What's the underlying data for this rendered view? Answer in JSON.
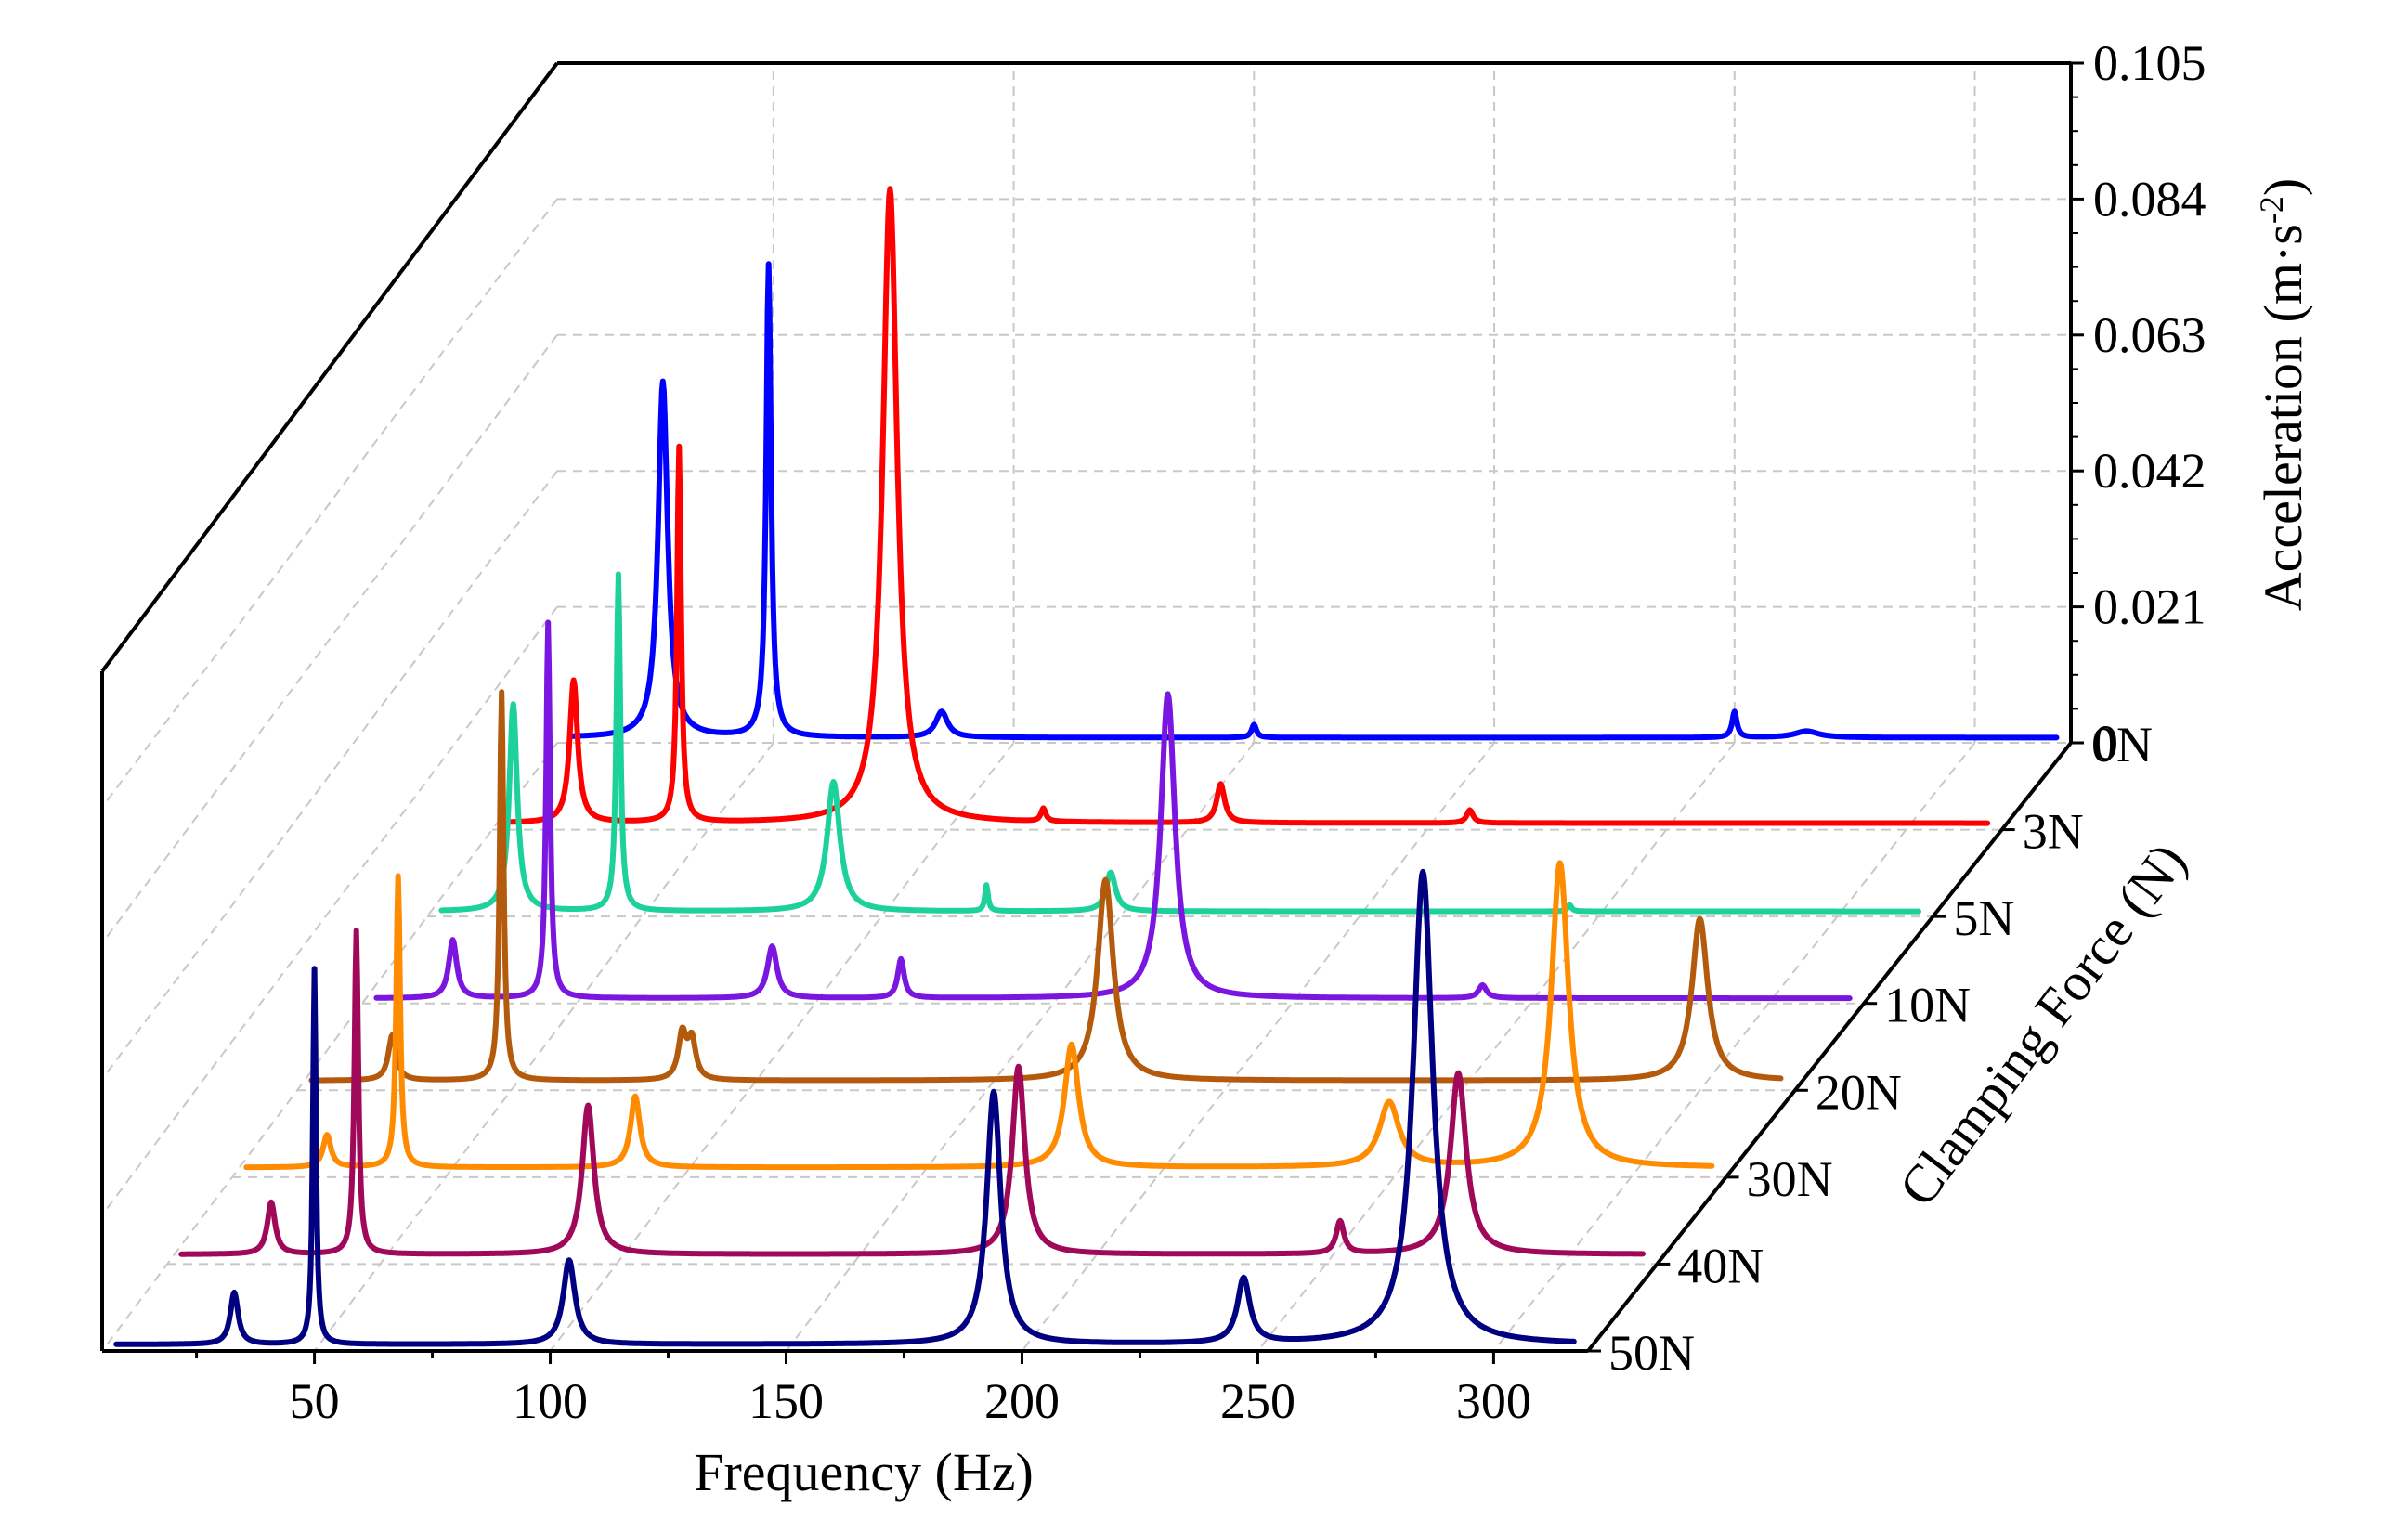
{
  "chart_data": {
    "type": "line",
    "subtype": "3d-waterfall",
    "title": "",
    "xlabel": "Frequency (Hz)",
    "ylabel": "Clamping Force (N)",
    "zlabel": "Acceleration (m·s-2)",
    "zlabel_main": "Acceleration (m·s",
    "zlabel_sup": "-2",
    "zlabel_end": ")",
    "xlim": [
      5,
      320
    ],
    "zlim": [
      0,
      0.105
    ],
    "x_ticks": [
      50,
      100,
      150,
      200,
      250,
      300
    ],
    "x_tick_labels": [
      "50",
      "100",
      "150",
      "200",
      "250",
      "300"
    ],
    "z_ticks": [
      0,
      0.021,
      0.042,
      0.063,
      0.084,
      0.105
    ],
    "z_tick_labels": [
      "0",
      "0.021",
      "0.042",
      "0.063",
      "0.084",
      "0.105"
    ],
    "y_tick_labels": [
      "0N",
      "3N",
      "5N",
      "10N",
      "20N",
      "30N",
      "40N",
      "50N"
    ],
    "grid": true,
    "series": [
      {
        "name": "0N",
        "color": "#0000ff",
        "baseline": 0.0008,
        "peaks": [
          {
            "x": 27,
            "a": 0.055,
            "w": 1.2
          },
          {
            "x": 49,
            "a": 0.073,
            "w": 0.6
          },
          {
            "x": 85,
            "a": 0.004,
            "w": 1.5
          },
          {
            "x": 150,
            "a": 0.002,
            "w": 0.6
          },
          {
            "x": 250,
            "a": 0.004,
            "w": 0.6
          },
          {
            "x": 265,
            "a": 0.001,
            "w": 3
          }
        ]
      },
      {
        "name": "3N",
        "color": "#ff0000",
        "baseline": 0.001,
        "peaks": [
          {
            "x": 22,
            "a": 0.022,
            "w": 1.0
          },
          {
            "x": 44,
            "a": 0.058,
            "w": 0.5
          },
          {
            "x": 88,
            "a": 0.098,
            "w": 1.8
          },
          {
            "x": 120,
            "a": 0.002,
            "w": 0.6
          },
          {
            "x": 157,
            "a": 0.006,
            "w": 1.0
          },
          {
            "x": 209,
            "a": 0.002,
            "w": 0.8
          }
        ]
      },
      {
        "name": "5N",
        "color": "#1dd19a",
        "baseline": 0.0008,
        "peaks": [
          {
            "x": 23,
            "a": 0.032,
            "w": 1.0
          },
          {
            "x": 45,
            "a": 0.052,
            "w": 0.5
          },
          {
            "x": 90,
            "a": 0.02,
            "w": 1.6
          },
          {
            "x": 148,
            "a": 0.006,
            "w": 1.2
          },
          {
            "x": 122,
            "a": 0.004,
            "w": 0.4
          },
          {
            "x": 244,
            "a": 0.001,
            "w": 0.5
          }
        ]
      },
      {
        "name": "10N",
        "color": "#7a16e0",
        "baseline": 0.0008,
        "peaks": [
          {
            "x": 24,
            "a": 0.009,
            "w": 1.0
          },
          {
            "x": 44,
            "a": 0.058,
            "w": 0.5
          },
          {
            "x": 91,
            "a": 0.008,
            "w": 1.2
          },
          {
            "x": 118,
            "a": 0.006,
            "w": 0.8
          },
          {
            "x": 174,
            "a": 0.047,
            "w": 1.8
          },
          {
            "x": 240,
            "a": 0.002,
            "w": 1.0
          }
        ]
      },
      {
        "name": "20N",
        "color": "#b35a0c",
        "baseline": 0.0015,
        "peaks": [
          {
            "x": 25,
            "a": 0.007,
            "w": 1.0
          },
          {
            "x": 48,
            "a": 0.06,
            "w": 0.5
          },
          {
            "x": 86,
            "a": 0.007,
            "w": 1.0
          },
          {
            "x": 88,
            "a": 0.006,
            "w": 1.0
          },
          {
            "x": 175,
            "a": 0.031,
            "w": 2.0
          },
          {
            "x": 300,
            "a": 0.025,
            "w": 2.0
          }
        ]
      },
      {
        "name": "30N",
        "color": "#ff8c00",
        "baseline": 0.0015,
        "peaks": [
          {
            "x": 25,
            "a": 0.005,
            "w": 1.0
          },
          {
            "x": 40,
            "a": 0.045,
            "w": 0.5
          },
          {
            "x": 90,
            "a": 0.011,
            "w": 1.2
          },
          {
            "x": 182,
            "a": 0.019,
            "w": 1.8
          },
          {
            "x": 249,
            "a": 0.01,
            "w": 2.5
          },
          {
            "x": 285,
            "a": 0.047,
            "w": 2.2
          }
        ]
      },
      {
        "name": "40N",
        "color": "#a0085a",
        "baseline": 0.0015,
        "peaks": [
          {
            "x": 27,
            "a": 0.008,
            "w": 1.0
          },
          {
            "x": 45,
            "a": 0.05,
            "w": 0.5
          },
          {
            "x": 94,
            "a": 0.023,
            "w": 1.5
          },
          {
            "x": 185,
            "a": 0.029,
            "w": 1.6
          },
          {
            "x": 278,
            "a": 0.028,
            "w": 2.0
          },
          {
            "x": 253,
            "a": 0.005,
            "w": 1.0
          }
        ]
      },
      {
        "name": "50N",
        "color": "#000080",
        "baseline": 0.001,
        "peaks": [
          {
            "x": 33,
            "a": 0.008,
            "w": 1.0
          },
          {
            "x": 50,
            "a": 0.058,
            "w": 0.4
          },
          {
            "x": 104,
            "a": 0.013,
            "w": 1.5
          },
          {
            "x": 194,
            "a": 0.039,
            "w": 1.8
          },
          {
            "x": 247,
            "a": 0.01,
            "w": 1.6
          },
          {
            "x": 285,
            "a": 0.073,
            "w": 2.5
          }
        ]
      }
    ]
  }
}
